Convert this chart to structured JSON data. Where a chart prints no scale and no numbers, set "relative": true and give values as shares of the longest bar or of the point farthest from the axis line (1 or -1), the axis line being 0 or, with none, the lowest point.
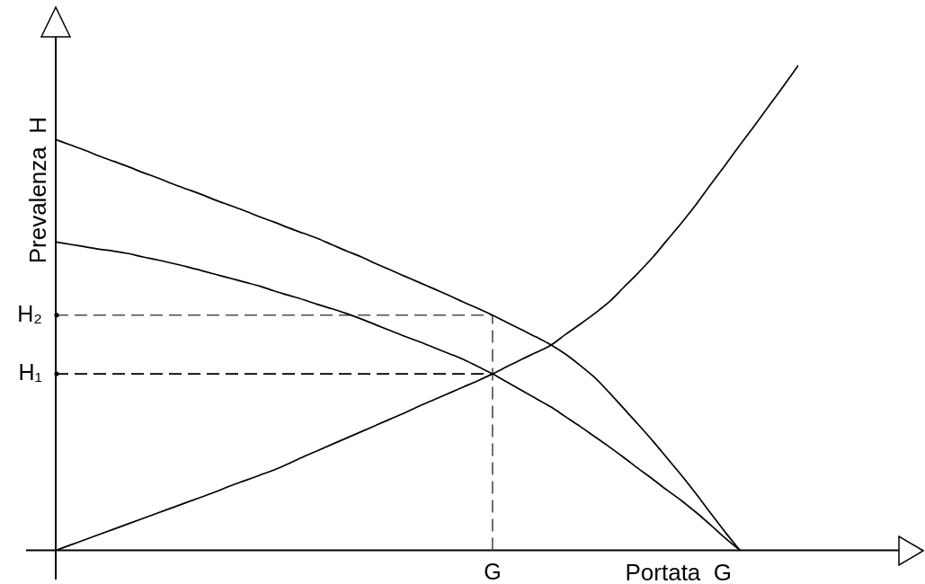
{
  "chart_data": {
    "type": "line",
    "xlabel": "Portata  G",
    "ylabel": "Prevalenza  H",
    "relative": true,
    "categories": [
      null,
      null,
      null,
      null,
      null,
      null,
      null,
      null,
      null,
      null,
      null,
      null,
      null,
      null,
      null,
      null,
      null,
      null,
      null,
      null,
      null,
      null,
      null,
      null,
      null,
      null,
      null,
      null,
      null,
      null,
      null,
      null,
      null,
      null,
      null,
      null,
      null,
      null,
      null,
      null,
      null,
      null,
      null,
      null,
      null,
      null,
      null,
      null,
      null,
      null,
      null,
      null
    ],
    "series": [
      {
        "color": "#000000",
        "values": [
          0.847,
          0.836,
          0.825,
          0.813,
          0.802,
          0.791,
          0.779,
          0.768,
          0.756,
          0.745,
          0.734,
          0.722,
          0.711,
          0.7,
          0.688,
          0.677,
          0.665,
          0.654,
          0.643,
          0.63,
          0.617,
          0.605,
          0.591,
          0.578,
          0.565,
          0.552,
          0.539,
          0.526,
          0.512,
          0.499,
          0.485,
          0.47,
          0.455,
          0.44,
          0.424,
          0.405,
          0.382,
          0.357,
          0.326,
          0.293,
          0.26,
          0.226,
          0.19,
          0.154,
          0.116,
          0.076,
          0.037,
          0,
          null,
          null,
          null,
          null
        ]
      },
      {
        "color": "#000000",
        "values": [
          0.636,
          0.631,
          0.626,
          0.621,
          0.617,
          0.612,
          0.605,
          0.599,
          0.592,
          0.585,
          0.577,
          0.569,
          0.561,
          0.553,
          0.545,
          0.535,
          0.526,
          0.517,
          0.507,
          0.498,
          0.488,
          0.477,
          0.465,
          0.453,
          0.441,
          0.43,
          0.418,
          0.406,
          0.394,
          0.379,
          0.364,
          0.347,
          0.33,
          0.313,
          0.296,
          0.276,
          0.256,
          0.235,
          0.214,
          0.192,
          0.169,
          0.147,
          0.124,
          0.102,
          0.078,
          0.052,
          0.025,
          0,
          null,
          null,
          null,
          null
        ]
      },
      {
        "color": "#000000",
        "values": [
          0,
          0.011,
          0.022,
          0.033,
          0.044,
          0.055,
          0.066,
          0.077,
          0.088,
          0.099,
          0.11,
          0.121,
          0.133,
          0.144,
          0.155,
          0.166,
          0.179,
          0.193,
          0.206,
          0.219,
          0.232,
          0.245,
          0.258,
          0.271,
          0.284,
          0.298,
          0.311,
          0.324,
          0.337,
          0.35,
          0.364,
          0.379,
          0.394,
          0.408,
          0.423,
          0.445,
          0.466,
          0.488,
          0.512,
          0.542,
          0.572,
          0.604,
          0.64,
          0.676,
          0.714,
          0.755,
          0.795,
          0.836,
          0.876,
          0.917,
          0.958,
          1
        ]
      }
    ],
    "ref_lines": [
      {
        "axis": "y",
        "value": 0.485,
        "label": "H₂",
        "line_style": "dashed",
        "color": "#4d4d4d"
      },
      {
        "axis": "y",
        "value": 0.364,
        "label": "H₁",
        "line_style": "dashed",
        "color": "#000000"
      }
    ],
    "annotations": [
      "G"
    ]
  }
}
